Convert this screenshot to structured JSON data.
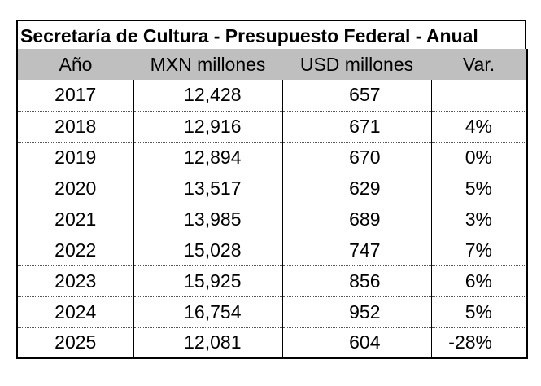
{
  "chart_data": {
    "type": "table",
    "title": "Secretaría de Cultura - Presupuesto Federal - Anual",
    "columns": [
      "Año",
      "MXN millones",
      "USD millones",
      "Var."
    ],
    "rows": [
      [
        "2017",
        "12,428",
        "657",
        ""
      ],
      [
        "2018",
        "12,916",
        "671",
        "4%"
      ],
      [
        "2019",
        "12,894",
        "670",
        "0%"
      ],
      [
        "2020",
        "13,517",
        "629",
        "5%"
      ],
      [
        "2021",
        "13,985",
        "689",
        "3%"
      ],
      [
        "2022",
        "15,028",
        "747",
        "7%"
      ],
      [
        "2023",
        "15,925",
        "856",
        "6%"
      ],
      [
        "2024",
        "16,754",
        "952",
        "5%"
      ],
      [
        "2025",
        "12,081",
        "604",
        "-28%"
      ]
    ]
  },
  "colors": {
    "header_fill": "#bfbfbf",
    "border": "#000000"
  }
}
